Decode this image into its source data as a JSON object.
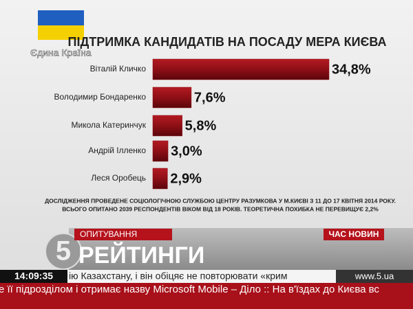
{
  "chart_data": {
    "type": "bar",
    "orientation": "horizontal",
    "title": "ПІДТРИМКА КАНДИДАТІВ НА ПОСАДУ МЕРА КИЄВА",
    "categories": [
      "Віталій Кличко",
      "Володимир Бондаренко",
      "Микола Катеринчук",
      "Андрій Ілленко",
      "Леся Оробець"
    ],
    "values": [
      34.8,
      7.6,
      5.8,
      3.0,
      2.9
    ],
    "value_labels": [
      "34,8%",
      "7,6%",
      "5,8%",
      "3,0%",
      "2,9%"
    ],
    "color": "#8e0f16",
    "notes": [
      "ДОСЛІДЖЕННЯ ПРОВЕДЕНЕ СОЦІОЛОГІЧНОЮ СЛУЖБОЮ ЦЕНТРУ РАЗУМКОВА У М.КИЄВІ З 11 ДО 17 КВІТНЯ 2014 РОКУ.",
      "ВСЬОГО ОПИТАНО 2039 РЕСПОНДЕНТІВ ВІКОМ ВІД 18 РОКІВ. ТЕОРЕТИЧНА ПОХИБКА НЕ ПЕРЕВИЩУЄ 2,2%"
    ]
  },
  "overlay": {
    "logo_caption": "Єдина Країна",
    "channel_logo": "5",
    "section": "ОПИТУВАННЯ",
    "headline": "РЕЙТИНГИ",
    "program": "ЧАС НОВИН",
    "time": "14:09:35",
    "ticker_top": "ію Казахстану, і він обіцяє не повторювати «крим",
    "website": "www.5.ua",
    "ticker_bottom": "е її підрозділом і отримає назву Microsoft Mobile – Діло :: На в'їздах до Києва вс"
  }
}
